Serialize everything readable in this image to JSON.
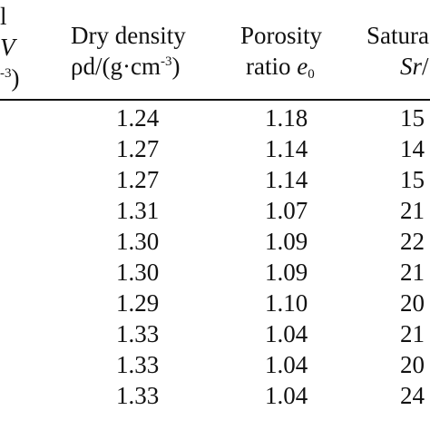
{
  "table": {
    "headers": {
      "col0": {
        "line1": "l",
        "line2": "V",
        "line3_sup": "-3",
        "line3_paren": ")"
      },
      "col1": {
        "line1": "Dry density",
        "line2_pre": "ρd/(g·cm",
        "line2_sup": "-3",
        "line2_post": ")"
      },
      "col2": {
        "line1": "Porosity",
        "line2_pre": "ratio ",
        "line2_var": "e",
        "line2_sub": "0"
      },
      "col3": {
        "line1": "Satura",
        "line2_var": "Sr",
        "line2_post": "/"
      }
    },
    "rows": [
      {
        "dry_density": "1.24",
        "porosity_ratio": "1.18",
        "saturation": "15"
      },
      {
        "dry_density": "1.27",
        "porosity_ratio": "1.14",
        "saturation": "14"
      },
      {
        "dry_density": "1.27",
        "porosity_ratio": "1.14",
        "saturation": "15"
      },
      {
        "dry_density": "1.31",
        "porosity_ratio": "1.07",
        "saturation": "21"
      },
      {
        "dry_density": "1.30",
        "porosity_ratio": "1.09",
        "saturation": "22"
      },
      {
        "dry_density": "1.30",
        "porosity_ratio": "1.09",
        "saturation": "21"
      },
      {
        "dry_density": "1.29",
        "porosity_ratio": "1.10",
        "saturation": "20"
      },
      {
        "dry_density": "1.33",
        "porosity_ratio": "1.04",
        "saturation": "21"
      },
      {
        "dry_density": "1.33",
        "porosity_ratio": "1.04",
        "saturation": "20"
      },
      {
        "dry_density": "1.33",
        "porosity_ratio": "1.04",
        "saturation": "24"
      }
    ]
  }
}
